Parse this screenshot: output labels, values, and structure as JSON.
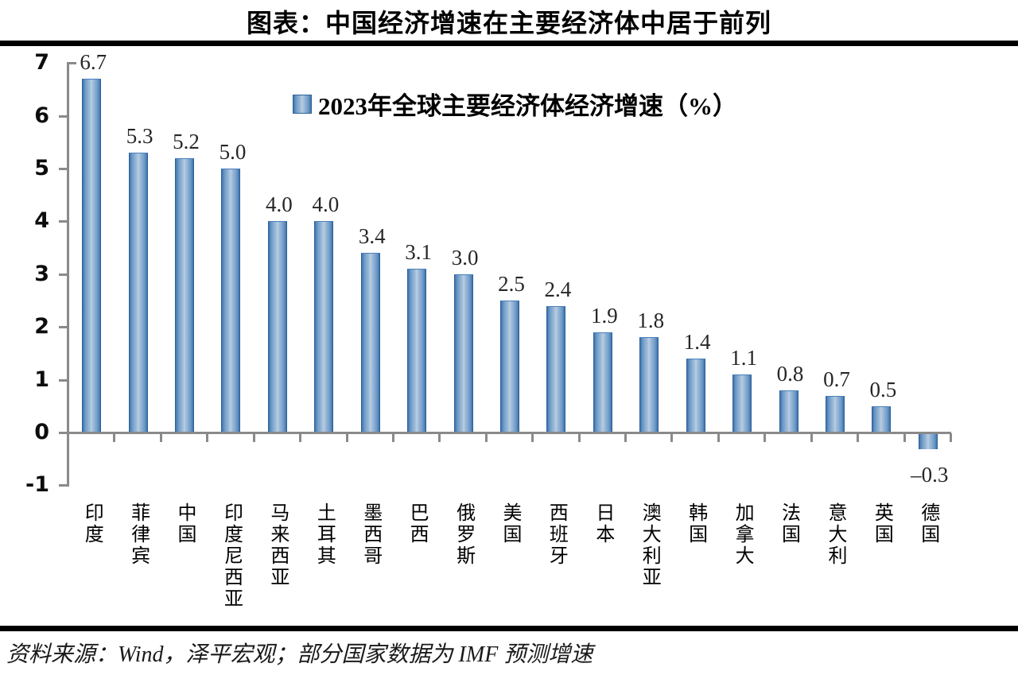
{
  "title": "图表：中国经济增速在主要经济体中居于前列",
  "source_note": "资料来源：Wind，泽平宏观；部分国家数据为 IMF 预测增速",
  "chart_data": {
    "type": "bar",
    "title": "2023年全球主要经济体经济增速（%）",
    "legend_position": "top-center",
    "grid": false,
    "categories": [
      "印度",
      "菲律宾",
      "中国",
      "印度尼西亚",
      "马来西亚",
      "土耳其",
      "墨西哥",
      "巴西",
      "俄罗斯",
      "美国",
      "西班牙",
      "日本",
      "澳大利亚",
      "韩国",
      "加拿大",
      "法国",
      "意大利",
      "英国",
      "德国"
    ],
    "values": [
      6.7,
      5.3,
      5.2,
      5.0,
      4.0,
      4.0,
      3.4,
      3.1,
      3.0,
      2.5,
      2.4,
      1.9,
      1.8,
      1.4,
      1.1,
      0.8,
      0.7,
      0.5,
      -0.3
    ],
    "value_labels": [
      "6.7",
      "5.3",
      "5.2",
      "5.0",
      "4.0",
      "4.0",
      "3.4",
      "3.1",
      "3.0",
      "2.5",
      "2.4",
      "1.9",
      "1.8",
      "1.4",
      "1.1",
      "0.8",
      "0.7",
      "0.5",
      "–0.3"
    ],
    "y_ticks": [
      "7",
      "6",
      "5",
      "4",
      "3",
      "2",
      "1",
      "0",
      "-1"
    ],
    "y_tick_values": [
      7,
      6,
      5,
      4,
      3,
      2,
      1,
      0,
      -1
    ],
    "ylim": [
      -1,
      7
    ],
    "xlabel": "",
    "ylabel": "",
    "colors": {
      "bar_edge": "#3f74ac",
      "bar_center": "#bdd0e4",
      "bar_border": "#2e6096",
      "axis": "#8a8a8a",
      "text": "#000000",
      "value_label": "#262626"
    }
  }
}
